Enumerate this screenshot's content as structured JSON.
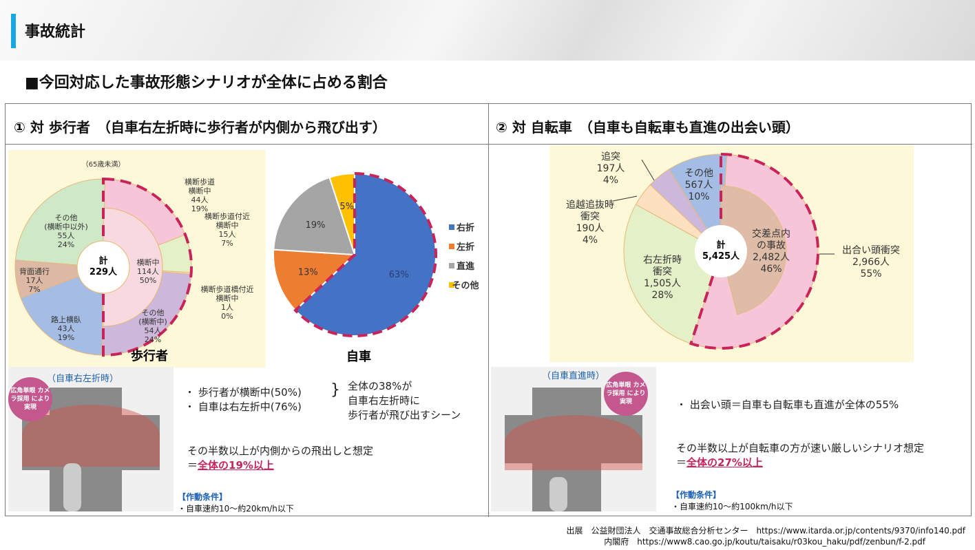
{
  "header": {
    "title": "事故統計"
  },
  "subtitle": "■今回対応した事故形態シナリオが全体に占める割合",
  "section1": {
    "title": "① 対 歩行者　（自車右左折時に歩行者が内側から飛び出す）",
    "scene_label": "（自車右左折時）",
    "badge": "広角単眼 カメラ採用 により実現",
    "bullets": [
      "・ 歩行者が横断中(50%)",
      "・ 自車は右左折中(76%)"
    ],
    "brace_note": [
      "全体の38%が",
      "自車右左折時に",
      "歩行者が飛び出すシーン"
    ],
    "note1": "その半数以上が内側からの飛出しと想定",
    "note2_prefix": "＝",
    "note2_emph": "全体の19%以上",
    "cond_title": "【作動条件】",
    "cond": "・自車速約10～約20km/h以下"
  },
  "section2": {
    "title": "② 対 自転車　（自車も自転車も直進の出会い頭）",
    "scene_label": "（自車直進時）",
    "badge": "広角単眼 カメラ採用 により実現",
    "bullet": "・ 出会い頭＝自車も自転車も直進が全体の55%",
    "note1": "その半数以上が自転車の方が速い厳しいシナリオ想定",
    "note2_prefix": "＝",
    "note2_emph": "全体の27%以上",
    "cond_title": "【作動条件】",
    "cond": "・自車速約10～約100km/h以下"
  },
  "source": [
    "出展　公益財団法人　交通事故総合分析センター　https://www.itarda.or.jp/contents/9370/info140.pdf",
    "内閣府　https://www8.cao.go.jp/koutu/taisaku/r03kou_haku/pdf/zenbun/f-2.pdf"
  ],
  "chart_data": [
    {
      "type": "pie",
      "title": "歩行者",
      "subtitle": "（65歳未満）",
      "center": [
        "計",
        "229人"
      ],
      "inner": [
        {
          "label": "横断中",
          "count": "114人",
          "pct": 50,
          "color": "#f9d9e0"
        }
      ],
      "outer": [
        {
          "label": "横断歩道横断中",
          "count": "44人",
          "pct": 19,
          "color": "#f6c6d8"
        },
        {
          "label": "横断歩道付近横断中",
          "count": "15人",
          "pct": 7,
          "color": "#e4f0c8"
        },
        {
          "label": "横断歩道橋付近横断中",
          "count": "1人",
          "pct": 0,
          "color": "#f5e4c0"
        },
        {
          "label": "その他(横断中)",
          "count": "54人",
          "pct": 24,
          "color": "#cdb8dc"
        },
        {
          "label": "路上横臥",
          "count": "43人",
          "pct": 19,
          "color": "#a5bde4"
        },
        {
          "label": "背面通行",
          "count": "17人",
          "pct": 7,
          "color": "#ddb8a4"
        },
        {
          "label": "その他(横断中以外)",
          "count": "55人",
          "pct": 24,
          "color": "#cfe8c8"
        }
      ],
      "highlight_color": "#c8245a"
    },
    {
      "type": "pie",
      "title": "自車",
      "legend_position": "right",
      "slices": [
        {
          "label": "右折",
          "pct": 63,
          "color": "#4472c4"
        },
        {
          "label": "左折",
          "pct": 13,
          "color": "#ed7d31"
        },
        {
          "label": "直進",
          "pct": 19,
          "color": "#a5a5a5"
        },
        {
          "label": "その他",
          "pct": 5,
          "color": "#ffc000"
        }
      ]
    },
    {
      "type": "pie",
      "center": [
        "計",
        "5,425人"
      ],
      "inner": [
        {
          "label": "交差点内の事故",
          "count": "2,482人",
          "pct": 46,
          "color": "#dfbca8"
        }
      ],
      "outer": [
        {
          "label": "出合い頭衝突",
          "count": "2,966人",
          "pct": 55,
          "color": "#f6c6d8"
        },
        {
          "label": "右左折時衝突",
          "count": "1,505人",
          "pct": 28,
          "color": "#e4f0c8"
        },
        {
          "label": "追越追抜時衝突",
          "count": "190人",
          "pct": 4,
          "color": "#fde0c0"
        },
        {
          "label": "追突",
          "count": "197人",
          "pct": 4,
          "color": "#cdb8dc"
        },
        {
          "label": "その他",
          "count": "567人",
          "pct": 10,
          "color": "#a5bde4"
        }
      ]
    }
  ]
}
